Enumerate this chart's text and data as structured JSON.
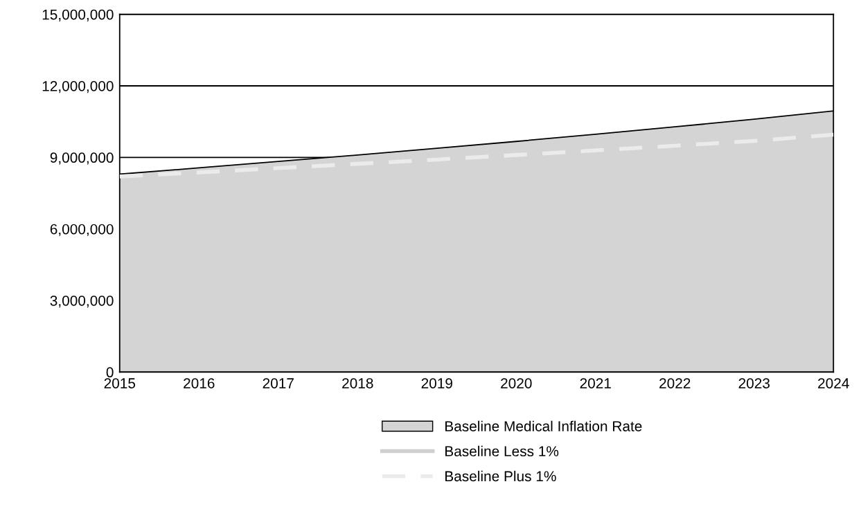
{
  "chart_data": {
    "type": "area",
    "categories": [
      "2015",
      "2016",
      "2017",
      "2018",
      "2019",
      "2020",
      "2021",
      "2022",
      "2023",
      "2024"
    ],
    "series": [
      {
        "name": "Baseline Medical Inflation Rate",
        "color": "#d4d4d4",
        "values": [
          8300000,
          8560000,
          8830000,
          9100000,
          9380000,
          9670000,
          9970000,
          10280000,
          10600000,
          10950000
        ]
      },
      {
        "name": "Baseline Less 1%",
        "type": "line",
        "line_style": "solid",
        "color": "#cfcfcf",
        "values": [
          null,
          null,
          null,
          null,
          null,
          null,
          null,
          null,
          null,
          null
        ]
      },
      {
        "name": "Baseline Plus 1%",
        "type": "line",
        "line_style": "dashed",
        "color": "#ebebeb",
        "values": [
          8200000,
          8370000,
          8550000,
          8730000,
          8910000,
          9100000,
          9290000,
          9490000,
          9690000,
          9950000
        ]
      }
    ],
    "ylim": [
      0,
      15000000
    ],
    "yticks": [
      {
        "value": 0,
        "label": "0"
      },
      {
        "value": 3000000,
        "label": "3,000,000"
      },
      {
        "value": 6000000,
        "label": "6,000,000"
      },
      {
        "value": 9000000,
        "label": "9,000,000"
      },
      {
        "value": 12000000,
        "label": "12,000,000"
      },
      {
        "value": 15000000,
        "label": "15,000,000"
      }
    ],
    "grid": "y",
    "legend": "bottom",
    "marker": "none"
  }
}
